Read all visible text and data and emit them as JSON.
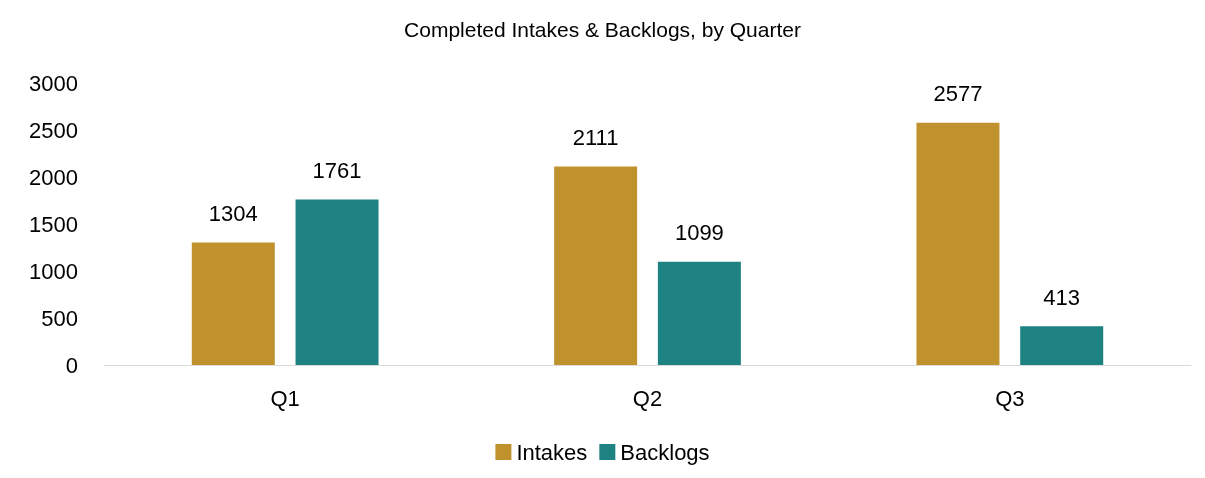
{
  "chart_data": {
    "type": "bar",
    "title": "Completed Intakes & Backlogs, by Quarter",
    "categories": [
      "Q1",
      "Q2",
      "Q3"
    ],
    "series": [
      {
        "name": "Intakes",
        "color": "#bf922e",
        "values": [
          1304,
          2111,
          2577
        ]
      },
      {
        "name": "Backlogs",
        "color": "#1e8283",
        "values": [
          1761,
          1099,
          413
        ]
      }
    ],
    "ylim": [
      0,
      3000
    ],
    "yticks": [
      0,
      500,
      1000,
      1500,
      2000,
      2500,
      3000
    ],
    "grid": false,
    "legend": "bottom",
    "data_labels": true
  }
}
